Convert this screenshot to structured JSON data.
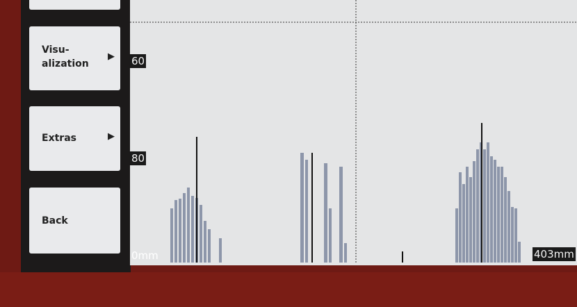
{
  "menu": {
    "buttons": [
      {
        "label": "Visu-\nalization",
        "arrow": "▶"
      },
      {
        "label": "Extras",
        "arrow": "▶"
      },
      {
        "label": "Back"
      }
    ]
  },
  "display": {
    "y_labels": [
      "60",
      "80"
    ],
    "x_start": "0mm",
    "x_end": "403mm"
  }
}
